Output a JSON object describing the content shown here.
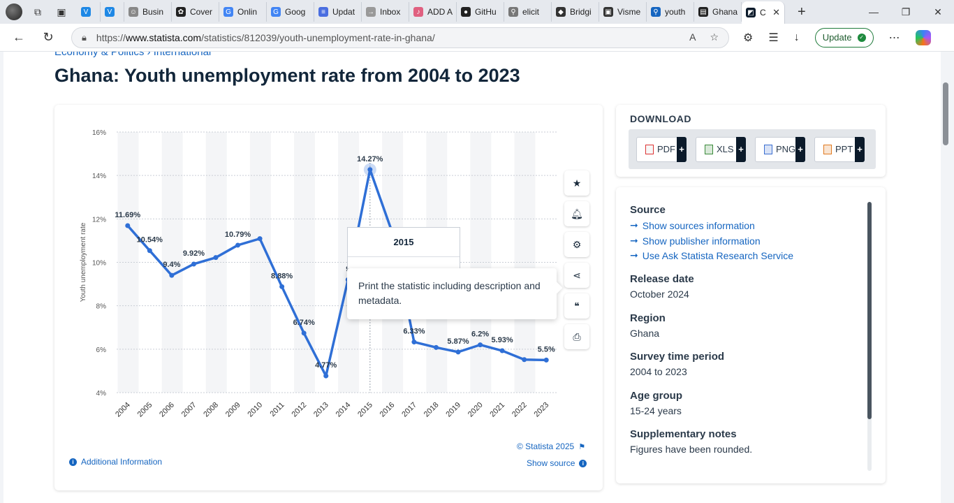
{
  "browser": {
    "tabs": [
      {
        "label": "",
        "color": "#1e88e5",
        "glyph": "V",
        "narrow": true
      },
      {
        "label": "",
        "color": "#1e88e5",
        "glyph": "V",
        "narrow": true
      },
      {
        "label": "Busin",
        "color": "#888",
        "glyph": "☺"
      },
      {
        "label": "Cover",
        "color": "#222",
        "glyph": "✿"
      },
      {
        "label": "Onlin",
        "color": "#4285f4",
        "glyph": "G"
      },
      {
        "label": "Goog",
        "color": "#4285f4",
        "glyph": "G"
      },
      {
        "label": "Updat",
        "color": "#4a6ee0",
        "glyph": "≡"
      },
      {
        "label": "Inbox",
        "color": "#999",
        "glyph": "→"
      },
      {
        "label": "ADD A",
        "color": "#e06080",
        "glyph": "♪"
      },
      {
        "label": "GitHu",
        "color": "#222",
        "glyph": "●"
      },
      {
        "label": "elicit",
        "color": "#777",
        "glyph": "⚲"
      },
      {
        "label": "Bridgi",
        "color": "#333",
        "glyph": "◆"
      },
      {
        "label": "Visme",
        "color": "#333",
        "glyph": "▣"
      },
      {
        "label": "youth",
        "color": "#1565c0",
        "glyph": "⚲"
      },
      {
        "label": "Ghana",
        "color": "#222",
        "glyph": "▤"
      }
    ],
    "active_tab": {
      "label": "C",
      "color": "#0b1a2a",
      "glyph": "◩"
    },
    "url_prefix": "https://",
    "url_host": "www.statista.com",
    "url_path": "/statistics/812039/youth-unemployment-rate-in-ghana/",
    "update_label": "Update"
  },
  "page": {
    "breadcrumb": "Economy & Politics › International",
    "title": "Ghana: Youth unemployment rate from 2004 to 2023",
    "copyright": "© Statista 2025",
    "additional_info": "Additional Information",
    "show_source": "Show source",
    "tooltip_year": "2015",
    "print_tooltip": "Print the statistic including description and metadata."
  },
  "download": {
    "title": "DOWNLOAD",
    "buttons": [
      {
        "label": "PDF",
        "color": "#d33"
      },
      {
        "label": "XLS",
        "color": "#3a8a3a"
      },
      {
        "label": "PNG",
        "color": "#3a6ed0"
      },
      {
        "label": "PPT",
        "color": "#e07a20"
      }
    ]
  },
  "meta": {
    "source_h": "Source",
    "source_links": [
      "Show sources information",
      "Show publisher information",
      "Use Ask Statista Research Service"
    ],
    "release_h": "Release date",
    "release_v": "October 2024",
    "region_h": "Region",
    "region_v": "Ghana",
    "survey_h": "Survey time period",
    "survey_v": "2004 to 2023",
    "age_h": "Age group",
    "age_v": "15-24 years",
    "notes_h": "Supplementary notes",
    "notes_v": "Figures have been rounded."
  },
  "chart_data": {
    "type": "line",
    "title": "Ghana: Youth unemployment rate from 2004 to 2023",
    "ylabel": "Youth unemployment rate",
    "xlabel": "",
    "ylim": [
      4,
      16
    ],
    "yticks": [
      4,
      6,
      8,
      10,
      12,
      14,
      16
    ],
    "ytick_suffix": "%",
    "highlight": "2015",
    "categories": [
      "2004",
      "2005",
      "2006",
      "2007",
      "2008",
      "2009",
      "2010",
      "2011",
      "2012",
      "2013",
      "2014",
      "2015",
      "2016",
      "2017",
      "2018",
      "2019",
      "2020",
      "2021",
      "2022",
      "2023"
    ],
    "values": [
      11.69,
      10.54,
      9.4,
      9.92,
      10.22,
      10.79,
      11.09,
      8.88,
      6.74,
      4.77,
      9.2,
      14.27,
      11.4,
      6.33,
      6.08,
      5.87,
      6.2,
      5.93,
      5.52,
      5.5
    ],
    "labels": [
      "11.69%",
      "10.54%",
      "9.4%",
      "9.92%",
      "",
      "10.79%",
      "",
      "8.88%",
      "6.74%",
      "4.77%",
      "9",
      "14.27%",
      "",
      "6.33%",
      "",
      "5.87%",
      "6.2%",
      "5.93%",
      "",
      "5.5%"
    ]
  }
}
